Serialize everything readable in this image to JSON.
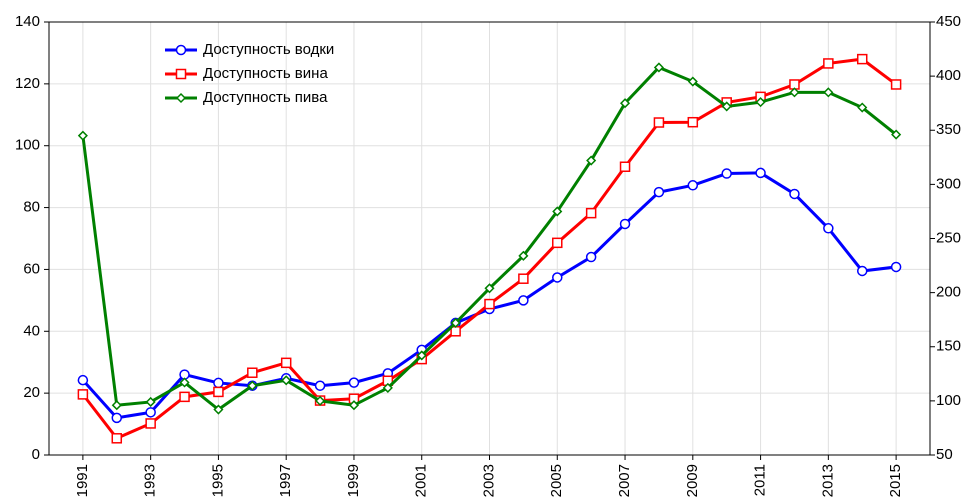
{
  "chart_data": {
    "type": "line",
    "x": [
      1991,
      1992,
      1993,
      1994,
      1995,
      1996,
      1997,
      1998,
      1999,
      2000,
      2001,
      2002,
      2003,
      2004,
      2005,
      2006,
      2007,
      2008,
      2009,
      2010,
      2011,
      2012,
      2013,
      2014,
      2015
    ],
    "xlim": [
      1990,
      2016
    ],
    "xticks": [
      1991,
      1993,
      1995,
      1997,
      1999,
      2001,
      2003,
      2005,
      2007,
      2009,
      2011,
      2013,
      2015
    ],
    "ylim": [
      0,
      140
    ],
    "yticks": [
      0,
      20,
      40,
      60,
      80,
      100,
      120,
      140
    ],
    "y2lim": [
      50,
      450
    ],
    "y2ticks": [
      50,
      100,
      150,
      200,
      250,
      300,
      350,
      400,
      450
    ],
    "grid": true,
    "legend": "upper left",
    "series": [
      {
        "name": "Доступность водки",
        "color": "#0000ff",
        "marker": "circle",
        "values": [
          24.2,
          12,
          13.8,
          26,
          23.3,
          22.4,
          24.8,
          22.4,
          23.4,
          26.4,
          34,
          42.7,
          47.2,
          50,
          57.4,
          64,
          74.7,
          85,
          87.2,
          91,
          91.2,
          84.4,
          73.3,
          59.5,
          60.8
        ]
      },
      {
        "name": "Доступность вина",
        "color": "#ff0000",
        "marker": "square",
        "values": [
          19.6,
          5.4,
          10.2,
          18.8,
          20.4,
          26.6,
          29.8,
          17.6,
          18.2,
          24,
          31,
          40,
          48.8,
          57,
          68.6,
          78.2,
          93.2,
          107.5,
          107.6,
          114,
          115.8,
          119.8,
          126.6,
          128,
          119.8
        ]
      },
      {
        "name": "Доступность пива",
        "color": "#008000",
        "marker": "diamond",
        "axis": "y2",
        "values": [
          345,
          96,
          99,
          117,
          92,
          114,
          119,
          100,
          96,
          112,
          142,
          172,
          204,
          234,
          275,
          322,
          375,
          408,
          395,
          372,
          376,
          385,
          385,
          371,
          346
        ]
      }
    ]
  }
}
